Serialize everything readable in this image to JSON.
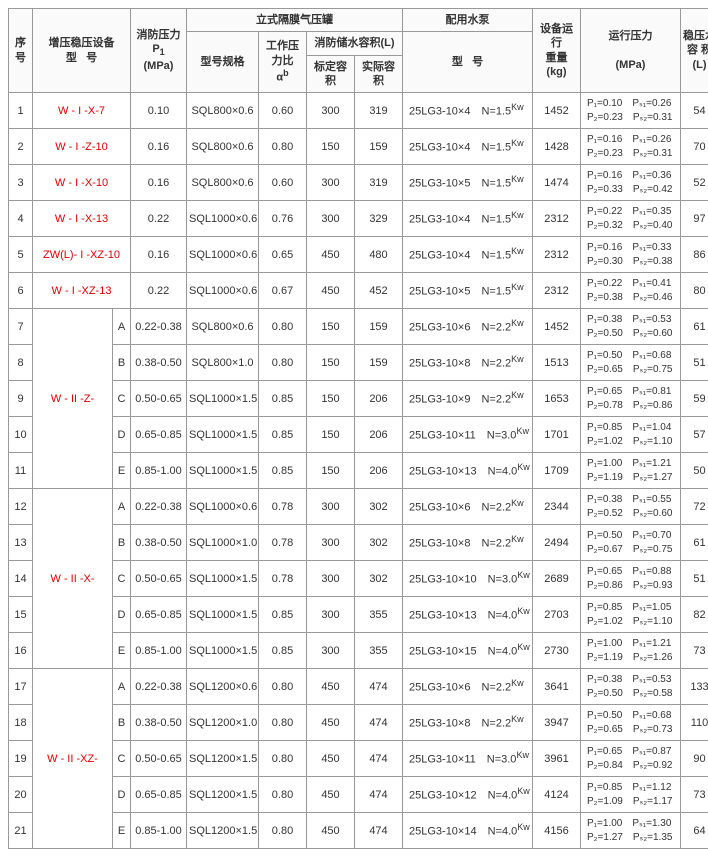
{
  "header": {
    "seq": "序号",
    "model": "增压稳压设备\n型　号",
    "fire_pressure": "消防压力\nP₁\n(MPa)",
    "tank_group": "立式隔膜气压罐",
    "tank_spec": "型号规格",
    "work_ratio": "工作压力比\nαᵇ",
    "fire_vol": "消防储水容积(L)",
    "std_cap": "标定容积",
    "real_cap": "实际容积",
    "pump_group": "配用水泵",
    "pump_model": "型　号",
    "run_weight": "设备运行\n重量\n(kg)",
    "run_press": "运行压力\n\n(MPa)",
    "stable_vol": "稳压水\n容 积\n(L)"
  },
  "group1": [
    {
      "n": "1",
      "model": "W - I -X-7",
      "mred": true,
      "p1": "0.10",
      "spec": "SQL800×0.6",
      "r": "0.60",
      "std": "300",
      "real": "319",
      "pump": "25LG3-10×4　N=1.5",
      "kw": "Kw",
      "wt": "1452",
      "pr": [
        "P₁=0.10　Pₛ₁=0.26",
        "P₂=0.23　Pₛ₂=0.31"
      ],
      "vol": "54"
    },
    {
      "n": "2",
      "model": "W - I -Z-10",
      "mred": true,
      "p1": "0.16",
      "spec": "SQL800×0.6",
      "r": "0.80",
      "std": "150",
      "real": "159",
      "pump": "25LG3-10×4　N=1.5",
      "kw": "Kw",
      "wt": "1428",
      "pr": [
        "P₁=0.16　Pₛ₁=0.26",
        "P₂=0.23　Pₛ₂=0.31"
      ],
      "vol": "70"
    },
    {
      "n": "3",
      "model": "W - I -X-10",
      "mred": true,
      "p1": "0.16",
      "spec": "SQL800×0.6",
      "r": "0.60",
      "std": "300",
      "real": "319",
      "pump": "25LG3-10×5　N=1.5",
      "kw": "Kw",
      "wt": "1474",
      "pr": [
        "P₁=0.16　Pₛ₁=0.36",
        "P₂=0.33　Pₛ₂=0.42"
      ],
      "vol": "52"
    },
    {
      "n": "4",
      "model": "W - I -X-13",
      "mred": true,
      "p1": "0.22",
      "spec": "SQL1000×0.6",
      "r": "0.76",
      "std": "300",
      "real": "329",
      "pump": "25LG3-10×4　N=1.5",
      "kw": "Kw",
      "wt": "2312",
      "pr": [
        "P₁=0.22　Pₛ₁=0.35",
        "P₂=0.32　Pₛ₂=0.40"
      ],
      "vol": "97"
    },
    {
      "n": "5",
      "model": "ZW(L)- I -XZ-10",
      "mred": true,
      "p1": "0.16",
      "spec": "SQL1000×0.6",
      "r": "0.65",
      "std": "450",
      "real": "480",
      "pump": "25LG3-10×4　N=1.5",
      "kw": "Kw",
      "wt": "2312",
      "pr": [
        "P₁=0.16　Pₛ₁=0.33",
        "P₂=0.30　Pₛ₂=0.38"
      ],
      "vol": "86"
    },
    {
      "n": "6",
      "model": "W - I -XZ-13",
      "mred": true,
      "p1": "0.22",
      "spec": "SQL1000×0.6",
      "r": "0.67",
      "std": "450",
      "real": "452",
      "pump": "25LG3-10×5　N=1.5",
      "kw": "Kw",
      "wt": "2312",
      "pr": [
        "P₁=0.22　Pₛ₁=0.41",
        "P₂=0.38　Pₛ₂=0.46"
      ],
      "vol": "80"
    }
  ],
  "group2_label": "W - II -Z-",
  "group2": [
    {
      "n": "7",
      "s": "A",
      "p1": "0.22-0.38",
      "spec": "SQL800×0.6",
      "r": "0.80",
      "std": "150",
      "real": "159",
      "pump": "25LG3-10×6　N=2.2",
      "kw": "Kw",
      "wt": "1452",
      "pr": [
        "P₁=0.38　Pₛ₁=0.53",
        "P₂=0.50　Pₛ₂=0.60"
      ],
      "vol": "61"
    },
    {
      "n": "8",
      "s": "B",
      "p1": "0.38-0.50",
      "spec": "SQL800×1.0",
      "r": "0.80",
      "std": "150",
      "real": "159",
      "pump": "25LG3-10×8　N=2.2",
      "kw": "Kw",
      "wt": "1513",
      "pr": [
        "P₁=0.50　Pₛ₁=0.68",
        "P₂=0.65　Pₛ₂=0.75"
      ],
      "vol": "51"
    },
    {
      "n": "9",
      "s": "C",
      "p1": "0.50-0.65",
      "spec": "SQL1000×1.5",
      "r": "0.85",
      "std": "150",
      "real": "206",
      "pump": "25LG3-10×9　N=2.2",
      "kw": "Kw",
      "wt": "1653",
      "pr": [
        "P₁=0.65　Pₛ₁=0.81",
        "P₂=0.78　Pₛ₂=0.86"
      ],
      "vol": "59"
    },
    {
      "n": "10",
      "s": "D",
      "p1": "0.65-0.85",
      "spec": "SQL1000×1.5",
      "r": "0.85",
      "std": "150",
      "real": "206",
      "pump": "25LG3-10×11　N=3.0",
      "kw": "Kw",
      "wt": "1701",
      "pr": [
        "P₁=0.85　Pₛ₁=1.04",
        "P₂=1.02　Pₛ₂=1.10"
      ],
      "vol": "57"
    },
    {
      "n": "11",
      "s": "E",
      "p1": "0.85-1.00",
      "spec": "SQL1000×1.5",
      "r": "0.85",
      "std": "150",
      "real": "206",
      "pump": "25LG3-10×13　N=4.0",
      "kw": "Kw",
      "wt": "1709",
      "pr": [
        "P₁=1.00　Pₛ₁=1.21",
        "P₂=1.19　Pₛ₂=1.27"
      ],
      "vol": "50"
    }
  ],
  "group3_label": "W - II -X-",
  "group3": [
    {
      "n": "12",
      "s": "A",
      "p1": "0.22-0.38",
      "spec": "SQL1000×0.6",
      "r": "0.78",
      "std": "300",
      "real": "302",
      "pump": "25LG3-10×6　N=2.2",
      "kw": "Kw",
      "wt": "2344",
      "pr": [
        "P₁=0.38　Pₛ₁=0.55",
        "P₂=0.52　Pₛ₂=0.60"
      ],
      "vol": "72"
    },
    {
      "n": "13",
      "s": "B",
      "p1": "0.38-0.50",
      "spec": "SQL1000×1.0",
      "r": "0.78",
      "std": "300",
      "real": "302",
      "pump": "25LG3-10×8　N=2.2",
      "kw": "Kw",
      "wt": "2494",
      "pr": [
        "P₁=0.50　Pₛ₁=0.70",
        "P₂=0.67　Pₛ₂=0.75"
      ],
      "vol": "61"
    },
    {
      "n": "14",
      "s": "C",
      "p1": "0.50-0.65",
      "spec": "SQL1000×1.5",
      "r": "0.78",
      "std": "300",
      "real": "302",
      "pump": "25LG3-10×10　N=3.0",
      "kw": "Kw",
      "wt": "2689",
      "pr": [
        "P₁=0.65　Pₛ₁=0.88",
        "P₂=0.86　Pₛ₂=0.93"
      ],
      "vol": "51"
    },
    {
      "n": "15",
      "s": "D",
      "p1": "0.65-0.85",
      "spec": "SQL1000×1.5",
      "r": "0.85",
      "std": "300",
      "real": "355",
      "pump": "25LG3-10×13　N=4.0",
      "kw": "Kw",
      "wt": "2703",
      "pr": [
        "P₁=0.85　Pₛ₁=1.05",
        "P₂=1.02　Pₛ₂=1.10"
      ],
      "vol": "82"
    },
    {
      "n": "16",
      "s": "E",
      "p1": "0.85-1.00",
      "spec": "SQL1000×1.5",
      "r": "0.85",
      "std": "300",
      "real": "355",
      "pump": "25LG3-10×15　N=4.0",
      "kw": "Kw",
      "wt": "2730",
      "pr": [
        "P₁=1.00　Pₛ₁=1.21",
        "P₂=1.19　Pₛ₂=1.26"
      ],
      "vol": "73"
    }
  ],
  "group4_label": "W - II -XZ-",
  "group4": [
    {
      "n": "17",
      "s": "A",
      "p1": "0.22-0.38",
      "spec": "SQL1200×0.6",
      "r": "0.80",
      "std": "450",
      "real": "474",
      "pump": "25LG3-10×6　N=2.2",
      "kw": "Kw",
      "wt": "3641",
      "pr": [
        "P₁=0.38　Pₛ₁=0.53",
        "P₂=0.50　Pₛ₂=0.58"
      ],
      "vol": "133"
    },
    {
      "n": "18",
      "s": "B",
      "p1": "0.38-0.50",
      "spec": "SQL1200×1.0",
      "r": "0.80",
      "std": "450",
      "real": "474",
      "pump": "25LG3-10×8　N=2.2",
      "kw": "Kw",
      "wt": "3947",
      "pr": [
        "P₁=0.50　Pₛ₁=0.68",
        "P₂=0.65　Pₛ₂=0.73"
      ],
      "vol": "110"
    },
    {
      "n": "19",
      "s": "C",
      "p1": "0.50-0.65",
      "spec": "SQL1200×1.5",
      "r": "0.80",
      "std": "450",
      "real": "474",
      "pump": "25LG3-10×11　N=3.0",
      "kw": "Kw",
      "wt": "3961",
      "pr": [
        "P₁=0.65　Pₛ₁=0.87",
        "P₂=0.84　Pₛ₂=0.92"
      ],
      "vol": "90"
    },
    {
      "n": "20",
      "s": "D",
      "p1": "0.65-0.85",
      "spec": "SQL1200×1.5",
      "r": "0.80",
      "std": "450",
      "real": "474",
      "pump": "25LG3-10×12　N=4.0",
      "kw": "Kw",
      "wt": "4124",
      "pr": [
        "P₁=0.85　Pₛ₁=1.12",
        "P₂=1.09　Pₛ₂=1.17"
      ],
      "vol": "73"
    },
    {
      "n": "21",
      "s": "E",
      "p1": "0.85-1.00",
      "spec": "SQL1200×1.5",
      "r": "0.80",
      "std": "450",
      "real": "474",
      "pump": "25LG3-10×14　N=4.0",
      "kw": "Kw",
      "wt": "4156",
      "pr": [
        "P₁=1.00　Pₛ₁=1.30",
        "P₂=1.27　Pₛ₂=1.35"
      ],
      "vol": "64"
    }
  ]
}
